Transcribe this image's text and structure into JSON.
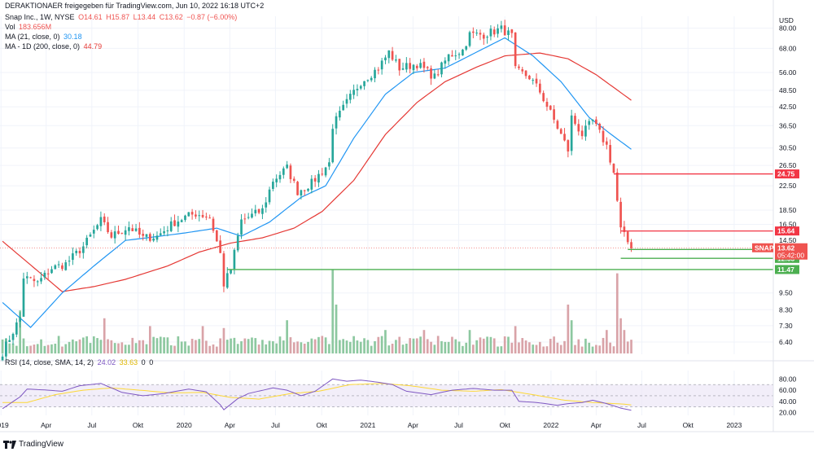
{
  "header": {
    "attribution": "DERAKTIONAER freigegeben für TradingView.com, Jun 10, 2022 16:18 UTC+2",
    "symbol_line": "Snap Inc., 1W, NYSE",
    "ohlc": {
      "open": "O14.61",
      "high": "H15.87",
      "low": "L13.44",
      "close": "C13.62",
      "change": "−0.87 (−6.00%)"
    },
    "vol_label": "Vol",
    "vol_value": "183.656M",
    "ma21_label": "MA (21, close, 0)",
    "ma21_value": "30.18",
    "ma200_label": "MA - 1D (200, close, 0)",
    "ma200_value": "44.79"
  },
  "rsi_header": {
    "label": "RSI (14, close, SMA, 14, 2)",
    "rsi_value": "24.02",
    "sma_value": "33.63",
    "z1": "0",
    "z2": "0"
  },
  "currency": "USD",
  "footer": {
    "brand": "TradingView"
  },
  "colors": {
    "up": "#26a69a",
    "down": "#ef5350",
    "ma21": "#2196f3",
    "ma200": "#e53935",
    "rsi": "#7e57c2",
    "rsi_sma": "#fdd835",
    "vol_up": "#8dc8a0",
    "vol_down": "#d9a3a8",
    "support": "#4caf50",
    "resistance": "#f23645"
  },
  "chart_data": {
    "type": "candlestick",
    "timeframe": "1W",
    "y_scale": "log",
    "ylim": [
      5.8,
      88
    ],
    "y_ticks": [
      80.0,
      68.0,
      56.0,
      48.5,
      42.5,
      36.5,
      30.5,
      26.5,
      22.5,
      18.5,
      16.5,
      14.5,
      11.47,
      9.5,
      8.3,
      7.3,
      6.4
    ],
    "y_tick_labels": [
      "80.00",
      "68.00",
      "56.00",
      "48.50",
      "42.50",
      "36.50",
      "30.50",
      "26.50",
      "22.50",
      "18.50",
      "16.50",
      "14.50",
      "11.47",
      "9.50",
      "8.30",
      "7.30",
      "6.40"
    ],
    "x_range": [
      "2018-12-30",
      "2023-03-20"
    ],
    "x_ticks": [
      {
        "date": "2019-01-01",
        "label": "2019"
      },
      {
        "date": "2019-04-01",
        "label": "Apr"
      },
      {
        "date": "2019-07-01",
        "label": "Jul"
      },
      {
        "date": "2019-10-01",
        "label": "Okt"
      },
      {
        "date": "2020-01-01",
        "label": "2020"
      },
      {
        "date": "2020-04-01",
        "label": "Apr"
      },
      {
        "date": "2020-07-01",
        "label": "Jul"
      },
      {
        "date": "2020-10-01",
        "label": "Okt"
      },
      {
        "date": "2021-01-01",
        "label": "2021"
      },
      {
        "date": "2021-04-01",
        "label": "Apr"
      },
      {
        "date": "2021-07-01",
        "label": "Jul"
      },
      {
        "date": "2021-10-01",
        "label": "Okt"
      },
      {
        "date": "2022-01-01",
        "label": "2022"
      },
      {
        "date": "2022-04-01",
        "label": "Apr"
      },
      {
        "date": "2022-07-01",
        "label": "Jul"
      },
      {
        "date": "2022-10-01",
        "label": "Okt"
      },
      {
        "date": "2023-01-01",
        "label": "2023"
      }
    ],
    "price_keypoints": [
      [
        "2019-01-04",
        5.9
      ],
      [
        "2019-02-08",
        7.8
      ],
      [
        "2019-02-15",
        10.8
      ],
      [
        "2019-03-15",
        10.3
      ],
      [
        "2019-04-12",
        11.6
      ],
      [
        "2019-05-10",
        12.0
      ],
      [
        "2019-06-14",
        13.8
      ],
      [
        "2019-07-19",
        17.0
      ],
      [
        "2019-08-09",
        15.0
      ],
      [
        "2019-09-13",
        16.2
      ],
      [
        "2019-10-11",
        14.8
      ],
      [
        "2019-11-08",
        15.0
      ],
      [
        "2019-12-13",
        16.8
      ],
      [
        "2020-01-03",
        17.5
      ],
      [
        "2020-01-24",
        18.0
      ],
      [
        "2020-02-21",
        17.5
      ],
      [
        "2020-03-13",
        13.0
      ],
      [
        "2020-03-20",
        10.2
      ],
      [
        "2020-04-03",
        11.5
      ],
      [
        "2020-04-24",
        17.0
      ],
      [
        "2020-06-05",
        18.5
      ],
      [
        "2020-06-26",
        23.5
      ],
      [
        "2020-07-24",
        26.0
      ],
      [
        "2020-08-14",
        21.5
      ],
      [
        "2020-09-11",
        23.0
      ],
      [
        "2020-10-16",
        27.0
      ],
      [
        "2020-10-23",
        36.5
      ],
      [
        "2020-11-20",
        44.0
      ],
      [
        "2020-12-18",
        52.0
      ],
      [
        "2021-01-22",
        58.0
      ],
      [
        "2021-02-12",
        66.0
      ],
      [
        "2021-03-05",
        58.0
      ],
      [
        "2021-04-09",
        60.0
      ],
      [
        "2021-05-14",
        54.0
      ],
      [
        "2021-06-11",
        64.0
      ],
      [
        "2021-07-09",
        67.0
      ],
      [
        "2021-07-23",
        76.0
      ],
      [
        "2021-08-20",
        76.0
      ],
      [
        "2021-09-24",
        79.5
      ],
      [
        "2021-10-15",
        75.0
      ],
      [
        "2021-10-22",
        57.0
      ],
      [
        "2021-11-19",
        54.0
      ],
      [
        "2021-12-10",
        48.0
      ],
      [
        "2022-01-14",
        36.0
      ],
      [
        "2022-02-04",
        30.0
      ],
      [
        "2022-02-11",
        39.0
      ],
      [
        "2022-03-04",
        34.0
      ],
      [
        "2022-03-25",
        38.0
      ],
      [
        "2022-04-22",
        31.0
      ],
      [
        "2022-05-06",
        25.0
      ],
      [
        "2022-05-20",
        15.8
      ],
      [
        "2022-06-10",
        13.62
      ]
    ],
    "ma21_keypoints": [
      [
        "2019-01-04",
        8.8
      ],
      [
        "2019-03-01",
        7.2
      ],
      [
        "2019-05-03",
        9.5
      ],
      [
        "2019-07-05",
        11.8
      ],
      [
        "2019-09-06",
        14.5
      ],
      [
        "2019-11-01",
        14.9
      ],
      [
        "2020-01-03",
        15.4
      ],
      [
        "2020-03-06",
        16.0
      ],
      [
        "2020-04-24",
        15.0
      ],
      [
        "2020-06-19",
        16.8
      ],
      [
        "2020-08-21",
        20.5
      ],
      [
        "2020-10-09",
        22.5
      ],
      [
        "2020-12-04",
        33.0
      ],
      [
        "2021-02-05",
        47.0
      ],
      [
        "2021-04-02",
        56.0
      ],
      [
        "2021-06-04",
        58.0
      ],
      [
        "2021-08-06",
        66.0
      ],
      [
        "2021-10-01",
        74.0
      ],
      [
        "2021-11-26",
        64.0
      ],
      [
        "2022-01-21",
        52.0
      ],
      [
        "2022-03-18",
        39.0
      ],
      [
        "2022-05-06",
        33.5
      ],
      [
        "2022-06-10",
        30.18
      ]
    ],
    "ma200_keypoints": [
      [
        "2019-01-04",
        14.4
      ],
      [
        "2019-05-03",
        9.6
      ],
      [
        "2019-07-05",
        10.0
      ],
      [
        "2019-09-06",
        10.6
      ],
      [
        "2019-11-29",
        11.8
      ],
      [
        "2020-01-31",
        13.2
      ],
      [
        "2020-04-03",
        14.2
      ],
      [
        "2020-06-05",
        14.8
      ],
      [
        "2020-08-07",
        16.0
      ],
      [
        "2020-10-02",
        18.3
      ],
      [
        "2020-12-04",
        23.5
      ],
      [
        "2021-02-05",
        34.0
      ],
      [
        "2021-04-09",
        44.0
      ],
      [
        "2021-06-04",
        52.0
      ],
      [
        "2021-08-06",
        58.5
      ],
      [
        "2021-10-01",
        64.0
      ],
      [
        "2021-12-10",
        65.5
      ],
      [
        "2022-02-04",
        62.5
      ],
      [
        "2022-04-01",
        55.0
      ],
      [
        "2022-06-10",
        44.79
      ]
    ],
    "levels": [
      {
        "value": 24.75,
        "label": "24.75",
        "kind": "resistance",
        "from": "2022-05-06"
      },
      {
        "value": 15.64,
        "label": "15.64",
        "kind": "resistance",
        "from": "2022-05-20"
      },
      {
        "value": 13.48,
        "label": "13.48",
        "kind": "support",
        "from": "2022-06-03"
      },
      {
        "value": 12.55,
        "label": "12.55",
        "kind": "support",
        "from": "2022-05-20"
      },
      {
        "value": 11.47,
        "label": "11.47",
        "kind": "support",
        "from": "2020-03-27"
      }
    ],
    "last_price": {
      "symbol": "SNAP",
      "value": 13.62,
      "label": "13.62",
      "countdown": "05:42:00"
    },
    "volume_spikes": [
      {
        "date": "2019-02-08",
        "value": 2.2
      },
      {
        "date": "2019-07-26",
        "value": 1.8
      },
      {
        "date": "2019-10-25",
        "value": 1.4
      },
      {
        "date": "2020-02-07",
        "value": 1.4
      },
      {
        "date": "2020-03-20",
        "value": 1.3
      },
      {
        "date": "2020-07-24",
        "value": 1.7
      },
      {
        "date": "2020-10-23",
        "value": 4.3
      },
      {
        "date": "2020-10-30",
        "value": 2.5
      },
      {
        "date": "2021-02-05",
        "value": 1.2
      },
      {
        "date": "2021-04-23",
        "value": 1.2
      },
      {
        "date": "2021-07-23",
        "value": 1.2
      },
      {
        "date": "2021-10-22",
        "value": 1.4
      },
      {
        "date": "2022-02-04",
        "value": 2.5
      },
      {
        "date": "2022-02-11",
        "value": 1.7
      },
      {
        "date": "2022-04-22",
        "value": 1.2
      },
      {
        "date": "2022-05-13",
        "value": 4.1
      },
      {
        "date": "2022-05-20",
        "value": 1.8
      },
      {
        "date": "2022-05-27",
        "value": 1.2
      }
    ],
    "rsi": {
      "ylim": [
        15,
        95
      ],
      "y_ticks": [
        80.0,
        60.0,
        40.0,
        20.0
      ],
      "y_tick_labels": [
        "80.00",
        "60.00",
        "40.00",
        "20.00"
      ],
      "band": [
        30,
        70
      ],
      "keypoints": [
        [
          "2019-01-04",
          27
        ],
        [
          "2019-02-08",
          48
        ],
        [
          "2019-02-22",
          62
        ],
        [
          "2019-04-05",
          60
        ],
        [
          "2019-05-03",
          58
        ],
        [
          "2019-06-07",
          68
        ],
        [
          "2019-07-19",
          72
        ],
        [
          "2019-08-30",
          56
        ],
        [
          "2019-10-11",
          50
        ],
        [
          "2019-11-22",
          54
        ],
        [
          "2020-01-10",
          62
        ],
        [
          "2020-02-14",
          57
        ],
        [
          "2020-03-13",
          34
        ],
        [
          "2020-03-20",
          25
        ],
        [
          "2020-04-17",
          45
        ],
        [
          "2020-05-08",
          54
        ],
        [
          "2020-06-26",
          64
        ],
        [
          "2020-07-24",
          60
        ],
        [
          "2020-08-21",
          50
        ],
        [
          "2020-09-18",
          58
        ],
        [
          "2020-10-23",
          80
        ],
        [
          "2020-11-20",
          76
        ],
        [
          "2020-12-18",
          78
        ],
        [
          "2021-01-22",
          74
        ],
        [
          "2021-02-19",
          70
        ],
        [
          "2021-03-19",
          58
        ],
        [
          "2021-05-07",
          52
        ],
        [
          "2021-06-18",
          60
        ],
        [
          "2021-07-30",
          63
        ],
        [
          "2021-09-10",
          60
        ],
        [
          "2021-10-15",
          60
        ],
        [
          "2021-10-29",
          40
        ],
        [
          "2021-12-03",
          38
        ],
        [
          "2022-01-14",
          33
        ],
        [
          "2022-02-04",
          36
        ],
        [
          "2022-03-04",
          38
        ],
        [
          "2022-03-25",
          42
        ],
        [
          "2022-04-22",
          36
        ],
        [
          "2022-05-20",
          28
        ],
        [
          "2022-06-10",
          24
        ]
      ],
      "sma_keypoints": [
        [
          "2019-01-04",
          38
        ],
        [
          "2019-02-22",
          38
        ],
        [
          "2019-04-19",
          52
        ],
        [
          "2019-06-14",
          60
        ],
        [
          "2019-08-09",
          64
        ],
        [
          "2019-10-04",
          60
        ],
        [
          "2019-12-06",
          55
        ],
        [
          "2020-02-07",
          56
        ],
        [
          "2020-04-03",
          47
        ],
        [
          "2020-05-29",
          44
        ],
        [
          "2020-07-31",
          54
        ],
        [
          "2020-09-25",
          58
        ],
        [
          "2020-11-27",
          70
        ],
        [
          "2021-01-29",
          72
        ],
        [
          "2021-03-26",
          68
        ],
        [
          "2021-05-28",
          60
        ],
        [
          "2021-07-30",
          58
        ],
        [
          "2021-09-24",
          61
        ],
        [
          "2021-11-26",
          52
        ],
        [
          "2022-01-28",
          42
        ],
        [
          "2022-03-25",
          38
        ],
        [
          "2022-05-27",
          35
        ],
        [
          "2022-06-10",
          33.63
        ]
      ]
    }
  }
}
